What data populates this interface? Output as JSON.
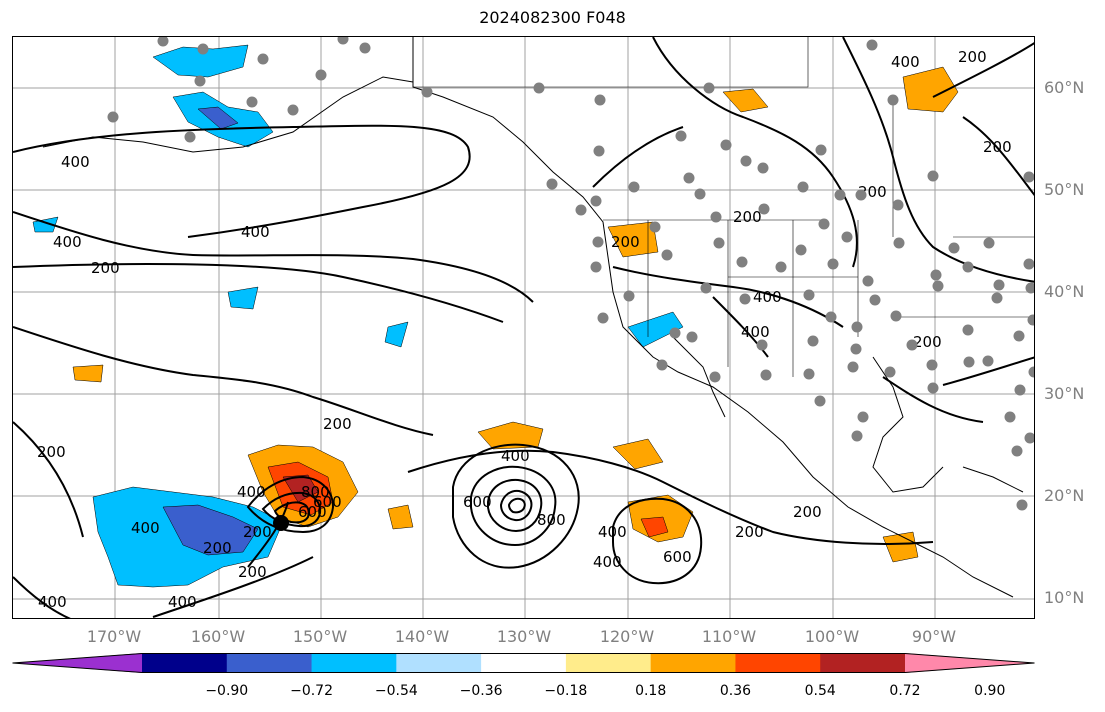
{
  "title": "2024082300 F048",
  "lat_labels": [
    "60°N",
    "50°N",
    "40°N",
    "30°N",
    "20°N",
    "10°N"
  ],
  "lon_labels": [
    "170°W",
    "160°W",
    "150°W",
    "140°W",
    "130°W",
    "120°W",
    "110°W",
    "100°W",
    "90°W"
  ],
  "colorbar": {
    "ticks": [
      "−0.90",
      "−0.72",
      "−0.54",
      "−0.36",
      "−0.18",
      "0.18",
      "0.36",
      "0.54",
      "0.72",
      "0.90"
    ],
    "colors": [
      "#9b30d0",
      "#00008b",
      "#3a5fcd",
      "#00bfff",
      "#b0e0ff",
      "#ffffff",
      "#ffec8b",
      "#ffa500",
      "#ff4500",
      "#b22222",
      "#ff88aa"
    ]
  },
  "contour_labels": [
    "400",
    "400",
    "200",
    "400",
    "200",
    "200",
    "400",
    "200",
    "400",
    "200",
    "400",
    "400",
    "200",
    "400",
    "400",
    "200",
    "200",
    "200",
    "200",
    "200",
    "600",
    "600",
    "800",
    "400",
    "800",
    "600",
    "400",
    "200",
    "400",
    "200",
    "200",
    "600",
    "400"
  ],
  "colors": {
    "contour": "#000000",
    "grid": "#a0a0a0",
    "station": "#808080",
    "coast": "#000000"
  }
}
